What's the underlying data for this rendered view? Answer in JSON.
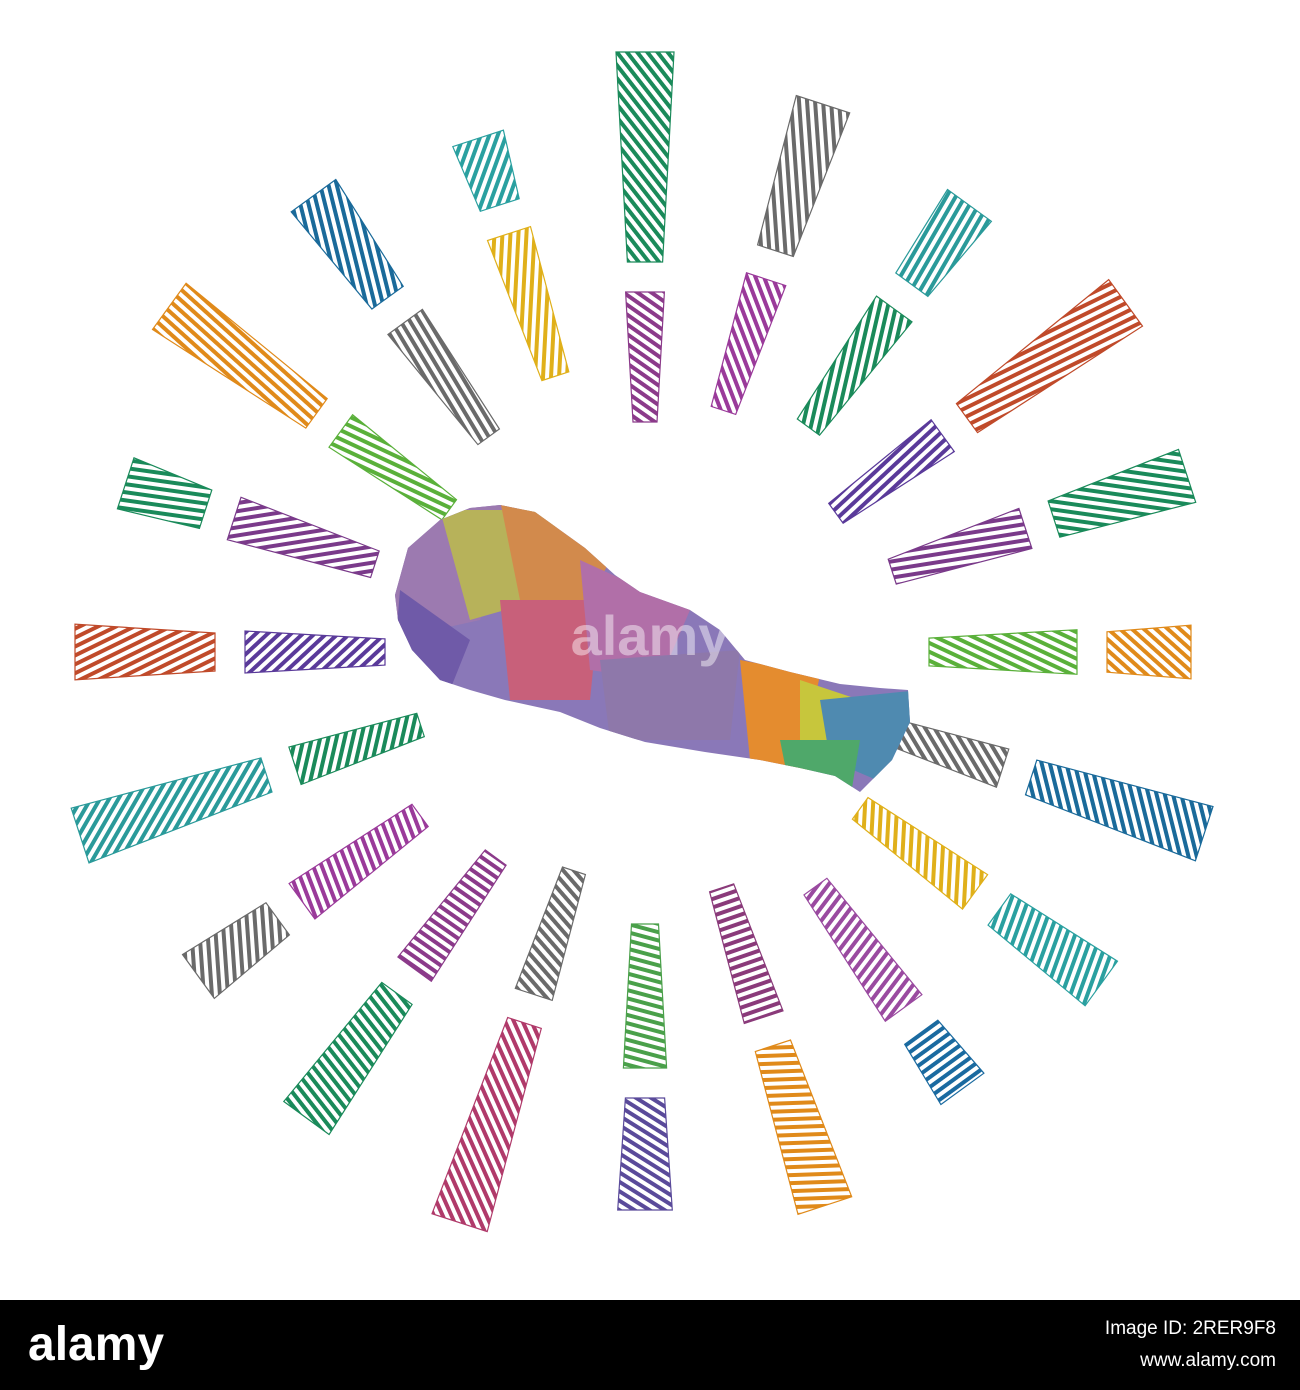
{
  "watermark": "alamy",
  "footer": {
    "logo": "alamy",
    "image_id": "Image ID: 2RER9F8",
    "url": "www.alamy.com"
  }
}
